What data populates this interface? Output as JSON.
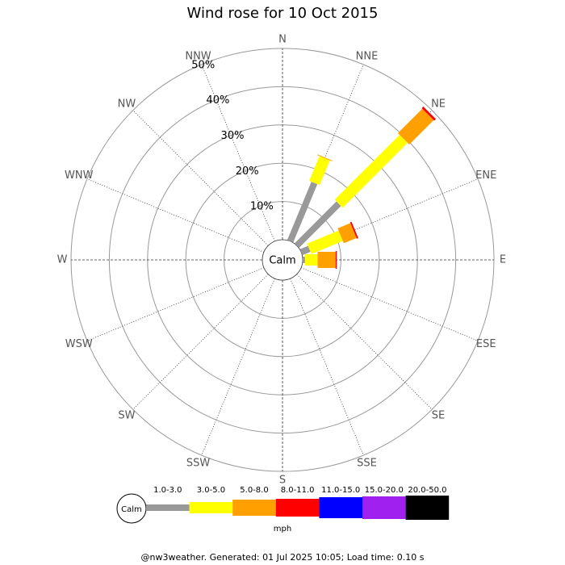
{
  "chart_data": {
    "type": "wind_rose",
    "title": "Wind rose for 10 Oct 2015",
    "directions": [
      "N",
      "NNE",
      "NE",
      "ENE",
      "E",
      "ESE",
      "SE",
      "SSE",
      "S",
      "SSW",
      "SW",
      "WSW",
      "W",
      "WNW",
      "NW",
      "NNW"
    ],
    "rlim": [
      0,
      50
    ],
    "rticks": [
      {
        "value": 10,
        "label": "10%"
      },
      {
        "value": 20,
        "label": "20%"
      },
      {
        "value": 30,
        "label": "30%"
      },
      {
        "value": 40,
        "label": "40%"
      },
      {
        "value": 50,
        "label": "50%"
      }
    ],
    "calm_label": "Calm",
    "units": "mph",
    "series": [
      {
        "name": "1.0-3.0",
        "color": "#999999",
        "values": [
          0,
          16.5,
          15.5,
          2.3,
          0.6,
          0,
          0,
          0,
          0,
          0,
          0,
          0,
          0,
          0,
          0,
          0
        ]
      },
      {
        "name": "3.0-5.0",
        "color": "#ffff00",
        "values": [
          0,
          7,
          24,
          8.9,
          3.3,
          0,
          0,
          0,
          0,
          0,
          0,
          0,
          0,
          0,
          0,
          0
        ]
      },
      {
        "name": "5.0-8.0",
        "color": "#ffa000",
        "values": [
          0,
          0.2,
          9,
          3.6,
          4.7,
          0,
          0,
          0,
          0,
          0,
          0,
          0,
          0,
          0,
          0,
          0
        ]
      },
      {
        "name": "8.0-11.0",
        "color": "#ff0000",
        "values": [
          0,
          0,
          0.6,
          0.4,
          0.3,
          0,
          0,
          0,
          0,
          0,
          0,
          0,
          0,
          0,
          0,
          0
        ]
      },
      {
        "name": "11.0-15.0",
        "color": "#0000ff",
        "values": [
          0,
          0,
          0,
          0,
          0,
          0,
          0,
          0,
          0,
          0,
          0,
          0,
          0,
          0,
          0,
          0
        ]
      },
      {
        "name": "15.0-20.0",
        "color": "#a020f0",
        "values": [
          0,
          0,
          0,
          0,
          0,
          0,
          0,
          0,
          0,
          0,
          0,
          0,
          0,
          0,
          0,
          0
        ]
      },
      {
        "name": "20.0-50.0",
        "color": "#000000",
        "values": [
          0,
          0,
          0,
          0,
          0,
          0,
          0,
          0,
          0,
          0,
          0,
          0,
          0,
          0,
          0,
          0
        ]
      }
    ],
    "footer": "@nw3weather. Generated: 01 Jul 2025 10:05; Load time: 0.10 s"
  }
}
